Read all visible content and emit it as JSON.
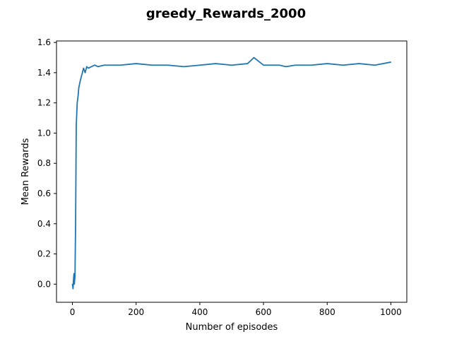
{
  "chart_data": {
    "type": "line",
    "title": "greedy_Rewards_2000",
    "xlabel": "Number of episodes",
    "ylabel": "Mean Rewards",
    "xlim": [
      -50,
      1050
    ],
    "ylim": [
      -0.12,
      1.61
    ],
    "xticks": [
      0,
      200,
      400,
      600,
      800,
      1000
    ],
    "yticks": [
      0.0,
      0.2,
      0.4,
      0.6,
      0.8,
      1.0,
      1.2,
      1.4,
      1.6
    ],
    "xtick_labels": [
      "0",
      "200",
      "400",
      "600",
      "800",
      "1000"
    ],
    "ytick_labels": [
      "0.0",
      "0.2",
      "0.4",
      "0.6",
      "0.8",
      "1.0",
      "1.2",
      "1.4",
      "1.6"
    ],
    "grid": false,
    "series": [
      {
        "color": "#1f77b4",
        "x": [
          0,
          2,
          3,
          5,
          6,
          8,
          10,
          12,
          15,
          18,
          20,
          25,
          30,
          35,
          40,
          45,
          50,
          60,
          70,
          80,
          100,
          150,
          200,
          250,
          300,
          350,
          400,
          450,
          500,
          550,
          570,
          600,
          650,
          670,
          700,
          750,
          800,
          850,
          900,
          950,
          1000
        ],
        "y": [
          0.0,
          -0.03,
          0.02,
          0.07,
          0.0,
          0.05,
          0.4,
          1.05,
          1.2,
          1.25,
          1.3,
          1.35,
          1.39,
          1.43,
          1.4,
          1.44,
          1.43,
          1.44,
          1.45,
          1.44,
          1.45,
          1.45,
          1.46,
          1.45,
          1.45,
          1.44,
          1.45,
          1.46,
          1.45,
          1.46,
          1.5,
          1.45,
          1.45,
          1.44,
          1.45,
          1.45,
          1.46,
          1.45,
          1.46,
          1.45,
          1.47
        ]
      }
    ]
  }
}
